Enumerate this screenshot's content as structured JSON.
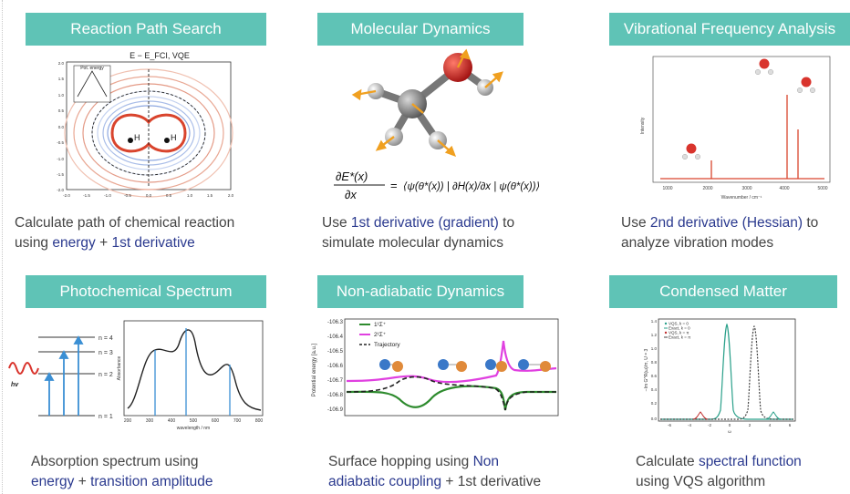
{
  "panels": [
    {
      "title": "Reaction Path Search",
      "caption": [
        [
          "Calculate path of chemical reaction",
          ""
        ],
        [
          "using ",
          "energy",
          " + ",
          "1st derivative"
        ]
      ]
    },
    {
      "title": "Molecular Dynamics"
    },
    {
      "title": "Vibrational Frequency Analysis"
    },
    {
      "title": "Photochemical Spectrum"
    },
    {
      "title": "Non-adiabatic Dynamics"
    },
    {
      "title": "Condensed Matter"
    }
  ],
  "captions": {
    "c1a": "Calculate path of chemical reaction",
    "c1b_1": "using ",
    "c1b_2": "energy",
    "c1b_3": " + ",
    "c1b_4": "1st derivative",
    "c2a_1": "Use ",
    "c2a_2": "1st derivative (gradient)",
    "c2a_3": " to",
    "c2b": "simulate molecular dynamics",
    "c3a_1": "Use ",
    "c3a_2": "2nd derivative (Hessian)",
    "c3a_3": " to",
    "c3b": "analyze vibration modes",
    "c4a": "Absorption spectrum using",
    "c4b_1": "energy",
    "c4b_2": " + ",
    "c4b_3": "transition amplitude",
    "c5a_1": "Surface hopping using ",
    "c5a_2": "Non",
    "c5b_1": "adiabatic coupling",
    "c5b_2": " + 1st derivative",
    "c6a_1": "Calculate ",
    "c6a_2": "spectral function",
    "c6b": "using VQS algorithm"
  },
  "fig1": {
    "title": "E − E_FCI, VQE",
    "inset_label": "Pot. energy",
    "x_ticks": [
      "-2.0",
      "-1.5",
      "-1.0",
      "-0.5",
      "0.0",
      "0.5",
      "1.0",
      "1.5",
      "2.0"
    ],
    "y_ticks": [
      "2.0",
      "1.5",
      "1.0",
      "0.5",
      "0.0",
      "-0.5",
      "-1.0",
      "-1.5",
      "-2.0"
    ],
    "atom_labels": [
      "H",
      "H"
    ]
  },
  "fig2": {
    "equation_lhs": "∂E*(x)",
    "equation_lhs_den": "∂x",
    "equation_rhs": "⟨ψ(θ*(x)) | ∂H(x)/∂x | ψ(θ*(x))⟩"
  },
  "fig3": {
    "xlabel": "Wavenumber / cm⁻¹",
    "ylabel": "Intensity",
    "x_ticks": [
      "1000",
      "2000",
      "3000",
      "4000",
      "5000"
    ]
  },
  "fig4": {
    "levels": [
      "n = 4",
      "n = 3",
      "n = 2",
      "n = 1"
    ],
    "hv": "hv",
    "xlabel": "wavelength / nm",
    "ylabel": "Absorbance",
    "x_ticks": [
      "200",
      "300",
      "400",
      "500",
      "600",
      "700",
      "800"
    ]
  },
  "fig5": {
    "ylabel": "Potential energy [a.u.]",
    "y_ticks": [
      "-106.3",
      "-106.4",
      "-106.5",
      "-106.6",
      "-106.7",
      "-106.8",
      "-106.9"
    ],
    "legend": [
      "1¹Σ⁺",
      "2¹Σ⁺",
      "Trajectory"
    ],
    "colors": {
      "s1": "#2e8b2e",
      "s2": "#e040e0",
      "traj": "#222222"
    }
  },
  "fig6": {
    "ylabel": "−Im G^R(ω)/π, U = 3",
    "xlabel": "ω",
    "legend": [
      "VQS, k = 0",
      "Exact, k = 0",
      "VQS, k = π",
      "Exact, k = π"
    ],
    "x_ticks": [
      "-6",
      "-4",
      "-2",
      "0",
      "2",
      "4",
      "6"
    ],
    "y_ticks": [
      "1.4",
      "1.2",
      "1.0",
      "0.8",
      "0.6",
      "0.4",
      "0.2",
      "0.0"
    ]
  }
}
